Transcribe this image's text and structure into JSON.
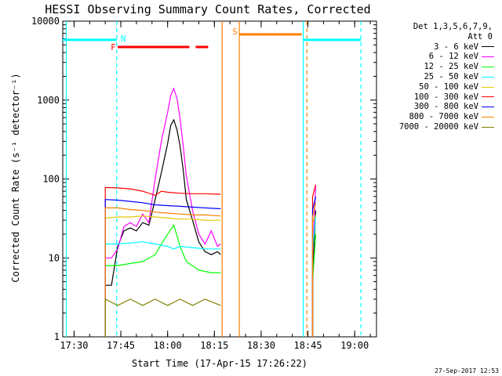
{
  "chart_data": {
    "type": "line",
    "title": "HESSI Observing Summary Count Rates, Corrected",
    "xlabel": "Start Time (17-Apr-15 17:26:22)",
    "ylabel": "Corrected Count Rate (s⁻¹ detector⁻¹)",
    "y_scale": "log",
    "ylim": [
      1,
      10000
    ],
    "xlim": [
      "17:26:22",
      "19:07:00"
    ],
    "x_ticks": [
      "17:30",
      "17:45",
      "18:00",
      "18:15",
      "18:30",
      "18:45",
      "19:00"
    ],
    "y_ticks": [
      "1",
      "10",
      "100",
      "1000",
      "10000"
    ],
    "legend_header": [
      "Det 1,3,5,6,7,9,",
      "Att 0"
    ],
    "legend_position": "right",
    "series": [
      {
        "name": "3 - 6 keV",
        "color": "#000000",
        "x": [
          "17:40:00",
          "17:42:00",
          "17:44:00",
          "17:46:00",
          "17:48:00",
          "17:50:00",
          "17:52:00",
          "17:54:00",
          "17:56:00",
          "17:58:00",
          "18:00:00",
          "18:01:00",
          "18:02:00",
          "18:03:00",
          "18:04:00",
          "18:05:00",
          "18:06:00",
          "18:08:00",
          "18:10:00",
          "18:12:00",
          "18:14:00",
          "18:16:00",
          "18:17:00",
          "18:46:30",
          "18:47:30"
        ],
        "values": [
          4.5,
          4.5,
          14,
          22,
          24,
          22,
          28,
          26,
          55,
          120,
          280,
          480,
          560,
          420,
          260,
          130,
          55,
          30,
          16,
          12,
          11,
          12,
          11,
          6,
          40
        ]
      },
      {
        "name": "6 - 12 keV",
        "color": "#ff00ff",
        "x": [
          "17:40:00",
          "17:42:00",
          "17:44:00",
          "17:46:00",
          "17:48:00",
          "17:50:00",
          "17:52:00",
          "17:54:00",
          "17:56:00",
          "17:58:00",
          "18:00:00",
          "18:01:00",
          "18:02:00",
          "18:03:00",
          "18:04:00",
          "18:05:00",
          "18:06:00",
          "18:08:00",
          "18:10:00",
          "18:12:00",
          "18:14:00",
          "18:16:00",
          "18:17:00",
          "18:46:30",
          "18:47:30"
        ],
        "values": [
          10,
          10,
          13,
          25,
          28,
          25,
          36,
          28,
          100,
          300,
          700,
          1150,
          1400,
          1050,
          580,
          260,
          110,
          40,
          20,
          15,
          22,
          14,
          15,
          9,
          85
        ]
      },
      {
        "name": "12 - 25 keV",
        "color": "#00ff00",
        "x": [
          "17:40:00",
          "17:44:00",
          "17:48:00",
          "17:52:00",
          "17:56:00",
          "17:58:00",
          "18:00:00",
          "18:02:00",
          "18:04:00",
          "18:06:00",
          "18:10:00",
          "18:14:00",
          "18:17:00",
          "18:46:30",
          "18:47:30"
        ],
        "values": [
          8,
          8,
          8.5,
          9,
          11,
          15,
          20,
          26,
          14,
          9,
          7,
          6.5,
          6.5,
          5,
          20
        ]
      },
      {
        "name": "25 - 50 keV",
        "color": "#00ffff",
        "x": [
          "17:40:00",
          "17:44:00",
          "17:48:00",
          "17:52:00",
          "17:56:00",
          "18:00:00",
          "18:02:00",
          "18:04:00",
          "18:08:00",
          "18:12:00",
          "18:17:00",
          "18:46:30",
          "18:47:30"
        ],
        "values": [
          15,
          15,
          15.5,
          16,
          15,
          14,
          13,
          14,
          13.5,
          13,
          13,
          12,
          35
        ]
      },
      {
        "name": "50 - 100 keV",
        "color": "#e6c800",
        "x": [
          "17:40:00",
          "17:44:00",
          "17:48:00",
          "17:52:00",
          "17:56:00",
          "18:00:00",
          "18:04:00",
          "18:08:00",
          "18:12:00",
          "18:17:00",
          "18:46:30",
          "18:47:30"
        ],
        "values": [
          32,
          33,
          33,
          34,
          33,
          32,
          31,
          31,
          30,
          30,
          28,
          35
        ]
      },
      {
        "name": "100 - 300 keV",
        "color": "#ff0000",
        "x": [
          "17:40:00",
          "17:44:00",
          "17:48:00",
          "17:52:00",
          "17:56:00",
          "17:58:00",
          "18:00:00",
          "18:04:00",
          "18:08:00",
          "18:12:00",
          "18:17:00",
          "18:46:30",
          "18:47:30"
        ],
        "values": [
          78,
          77,
          75,
          70,
          62,
          70,
          68,
          66,
          65,
          65,
          64,
          60,
          85
        ]
      },
      {
        "name": "300 - 800 keV",
        "color": "#0000ff",
        "x": [
          "17:40:00",
          "17:44:00",
          "17:48:00",
          "17:52:00",
          "17:56:00",
          "18:00:00",
          "18:04:00",
          "18:08:00",
          "18:12:00",
          "18:17:00",
          "18:46:30",
          "18:47:30"
        ],
        "values": [
          55,
          54,
          52,
          50,
          47,
          46,
          45,
          44,
          43,
          42,
          40,
          60
        ]
      },
      {
        "name": "800 - 7000 keV",
        "color": "#ff7f00",
        "x": [
          "17:40:00",
          "17:44:00",
          "17:48:00",
          "17:52:00",
          "17:56:00",
          "18:00:00",
          "18:04:00",
          "18:08:00",
          "18:12:00",
          "18:17:00",
          "18:46:30",
          "18:47:30"
        ],
        "values": [
          43,
          43,
          41,
          40,
          38,
          37,
          36,
          35,
          35,
          34,
          33,
          50
        ]
      },
      {
        "name": "7000 - 20000 keV",
        "color": "#808000",
        "x": [
          "17:40:00",
          "17:44:00",
          "17:48:00",
          "17:52:00",
          "17:56:00",
          "18:00:00",
          "18:04:00",
          "18:08:00",
          "18:12:00",
          "18:17:00"
        ],
        "values": [
          3,
          2.5,
          3,
          2.5,
          3,
          2.5,
          3,
          2.5,
          3,
          2.5
        ]
      }
    ],
    "flags": [
      {
        "label": "N",
        "color": "#00ffff",
        "start": "17:43:40"
      },
      {
        "label": "F",
        "color": "#ff0000",
        "start": "17:44:00"
      },
      {
        "label": "S",
        "color": "#ff7f00",
        "start": "18:23:00"
      }
    ],
    "flag_bars": [
      {
        "color": "#00ffff",
        "level": 5800,
        "from": "17:26:22",
        "to": "17:43:40"
      },
      {
        "color": "#00ffff",
        "level": 5800,
        "from": "18:43:30",
        "to": "19:02:00"
      },
      {
        "color": "#ff0000",
        "level": 4700,
        "from": "17:44:00",
        "to": "18:07:00"
      },
      {
        "color": "#ff0000",
        "level": 4700,
        "from": "18:09:00",
        "to": "18:13:00"
      },
      {
        "color": "#ff7f00",
        "level": 6800,
        "from": "18:23:00",
        "to": "18:43:00"
      }
    ],
    "vertical_markers": [
      {
        "color": "#00ffff",
        "time": "17:27:30",
        "style": "solid"
      },
      {
        "color": "#00ffff",
        "time": "17:43:40",
        "style": "dashed"
      },
      {
        "color": "#ff7f00",
        "time": "18:17:30",
        "style": "solid"
      },
      {
        "color": "#ff7f00",
        "time": "18:23:00",
        "style": "solid"
      },
      {
        "color": "#00ffff",
        "time": "18:43:30",
        "style": "solid"
      },
      {
        "color": "#ff7f00",
        "time": "18:44:40",
        "style": "dashed"
      },
      {
        "color": "#00ffff",
        "time": "19:02:00",
        "style": "dashed"
      }
    ],
    "timestamp": "27-Sep-2017 12:53"
  }
}
